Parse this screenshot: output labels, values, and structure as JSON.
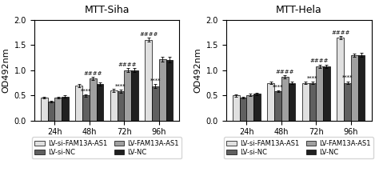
{
  "chart_data": [
    {
      "type": "bar",
      "title": "MTT-Siha",
      "ylabel": "OD492nm",
      "categories": [
        "24h",
        "48h",
        "72h",
        "96h"
      ],
      "series": [
        {
          "name": "LV-si-FAM13A-AS1",
          "color": "#e0e0e0",
          "values": [
            0.46,
            0.7,
            0.6,
            1.6
          ],
          "errors": [
            0.02,
            0.03,
            0.03,
            0.04
          ]
        },
        {
          "name": "LV-si-NC",
          "color": "#606060",
          "values": [
            0.38,
            0.5,
            0.58,
            0.68
          ],
          "errors": [
            0.02,
            0.02,
            0.03,
            0.04
          ]
        },
        {
          "name": "LV-FAM13A-AS1",
          "color": "#a0a0a0",
          "values": [
            0.46,
            0.84,
            1.0,
            1.22
          ],
          "errors": [
            0.02,
            0.03,
            0.04,
            0.05
          ]
        },
        {
          "name": "LV-NC",
          "color": "#202020",
          "values": [
            0.48,
            0.73,
            1.0,
            1.21
          ],
          "errors": [
            0.02,
            0.03,
            0.04,
            0.05
          ]
        }
      ],
      "ylim": [
        0.0,
        2.0
      ],
      "yticks": [
        0.0,
        0.5,
        1.0,
        1.5,
        2.0
      ],
      "legend": "upper center",
      "annotations": [
        {
          "text": "****",
          "category": "48h",
          "series": "LV-si-NC"
        },
        {
          "text": "####",
          "category": "48h",
          "series": "LV-FAM13A-AS1"
        },
        {
          "text": "****",
          "category": "72h",
          "series": "LV-si-NC"
        },
        {
          "text": "####",
          "category": "72h",
          "series": "LV-FAM13A-AS1"
        },
        {
          "text": "****",
          "category": "96h",
          "series": "LV-si-NC"
        },
        {
          "text": "####",
          "category": "96h",
          "series": "LV-si-FAM13A-AS1"
        }
      ]
    },
    {
      "type": "bar",
      "title": "MTT-Hela",
      "ylabel": "OD492nm",
      "categories": [
        "24h",
        "48h",
        "72h",
        "96h"
      ],
      "series": [
        {
          "name": "LV-si-FAM13A-AS1",
          "color": "#e0e0e0",
          "values": [
            0.5,
            0.75,
            0.75,
            1.65
          ],
          "errors": [
            0.02,
            0.03,
            0.03,
            0.03
          ]
        },
        {
          "name": "LV-si-NC",
          "color": "#606060",
          "values": [
            0.46,
            0.58,
            0.75,
            0.75
          ],
          "errors": [
            0.02,
            0.02,
            0.02,
            0.03
          ]
        },
        {
          "name": "LV-FAM13A-AS1",
          "color": "#a0a0a0",
          "values": [
            0.51,
            0.87,
            1.08,
            1.3
          ],
          "errors": [
            0.02,
            0.03,
            0.03,
            0.03
          ]
        },
        {
          "name": "LV-NC",
          "color": "#202020",
          "values": [
            0.53,
            0.75,
            1.08,
            1.3
          ],
          "errors": [
            0.02,
            0.03,
            0.03,
            0.04
          ]
        }
      ],
      "ylim": [
        0.0,
        2.0
      ],
      "yticks": [
        0.0,
        0.5,
        1.0,
        1.5,
        2.0
      ],
      "legend": "upper center",
      "annotations": [
        {
          "text": "****",
          "category": "48h",
          "series": "LV-si-NC"
        },
        {
          "text": "####",
          "category": "48h",
          "series": "LV-FAM13A-AS1"
        },
        {
          "text": "****",
          "category": "72h",
          "series": "LV-si-NC"
        },
        {
          "text": "####",
          "category": "72h",
          "series": "LV-FAM13A-AS1"
        },
        {
          "text": "****",
          "category": "96h",
          "series": "LV-si-NC"
        },
        {
          "text": "####",
          "category": "96h",
          "series": "LV-si-FAM13A-AS1"
        }
      ]
    }
  ]
}
